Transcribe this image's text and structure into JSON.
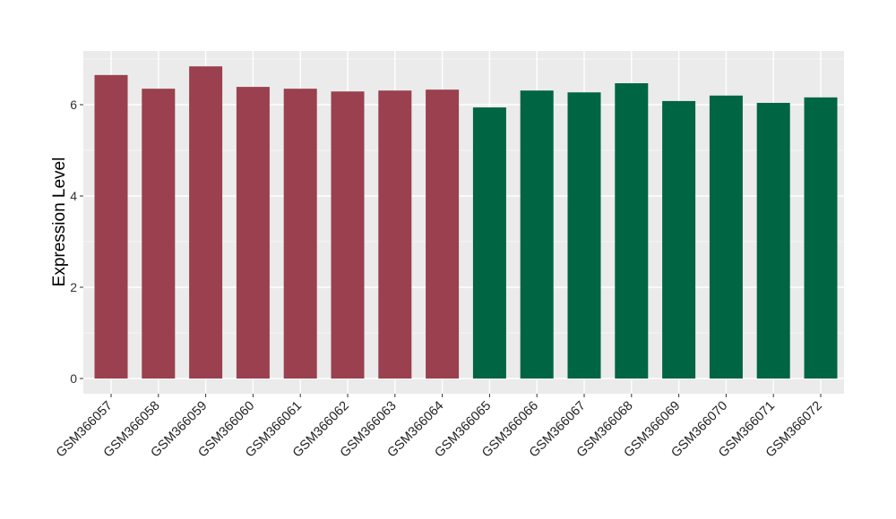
{
  "chart_data": {
    "type": "bar",
    "title": "",
    "xlabel": "",
    "ylabel": "Expression Level",
    "ylim": [
      -0.35,
      7.15
    ],
    "yticks": [
      0,
      2,
      4,
      6
    ],
    "categories": [
      "GSM366057",
      "GSM366058",
      "GSM366059",
      "GSM366060",
      "GSM366061",
      "GSM366062",
      "GSM366063",
      "GSM366064",
      "GSM366065",
      "GSM366066",
      "GSM366067",
      "GSM366068",
      "GSM366069",
      "GSM366070",
      "GSM366071",
      "GSM366072"
    ],
    "values": [
      6.65,
      6.35,
      6.84,
      6.39,
      6.35,
      6.29,
      6.31,
      6.33,
      5.94,
      6.31,
      6.27,
      6.47,
      6.08,
      6.2,
      6.04,
      6.16
    ],
    "groups": [
      0,
      0,
      0,
      0,
      0,
      0,
      0,
      0,
      1,
      1,
      1,
      1,
      1,
      1,
      1,
      1
    ],
    "colors": [
      "#9a404e",
      "#006543"
    ],
    "grid": true
  }
}
